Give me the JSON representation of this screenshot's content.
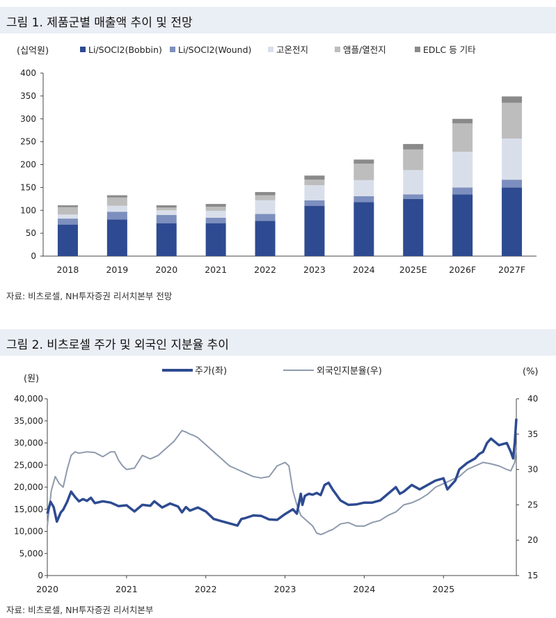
{
  "figure1": {
    "title": "그림 1. 제품군별 매출액 추이 및 전망",
    "source": "자료: 비츠로셀, NH투자증권 리서치본부 전망"
  },
  "figure2": {
    "title": "그림 2. 비츠로셀 주가 및 외국인 지분율 추이",
    "source": "자료: 비츠로셀, NH투자증권 리서치본부"
  },
  "colors": {
    "bobbin": "#2e4b91",
    "wound": "#7d8fbe",
    "high_temp": "#d9dfea",
    "amp": "#bdbdbd",
    "edlc": "#8a8a8a",
    "price": "#2e4b91",
    "foreign": "#8e9aad"
  },
  "chart_data": [
    {
      "type": "bar",
      "stacked": true,
      "unit_label": "(십억원)",
      "categories": [
        "2018",
        "2019",
        "2020",
        "2021",
        "2022",
        "2023",
        "2024",
        "2025E",
        "2026F",
        "2027F"
      ],
      "series": [
        {
          "name": "Li/SOCl2(Bobbin)",
          "color_key": "bobbin",
          "values": [
            69,
            80,
            72,
            72,
            77,
            110,
            118,
            125,
            135,
            150
          ]
        },
        {
          "name": "Li/SOCl2(Wound)",
          "color_key": "wound",
          "values": [
            13,
            17,
            18,
            12,
            15,
            12,
            13,
            10,
            15,
            17
          ]
        },
        {
          "name": "고온전지",
          "color_key": "high_temp",
          "values": [
            9,
            13,
            10,
            15,
            30,
            33,
            35,
            53,
            78,
            90
          ]
        },
        {
          "name": "앰플/열전지",
          "color_key": "amp",
          "values": [
            16,
            18,
            6,
            9,
            11,
            12,
            36,
            45,
            62,
            78
          ]
        },
        {
          "name": "EDLC 등 기타",
          "color_key": "edlc",
          "values": [
            4,
            5,
            5,
            6,
            7,
            9,
            9,
            12,
            10,
            14
          ]
        }
      ],
      "ylim": [
        0,
        400
      ],
      "yticks": [
        0,
        50,
        100,
        150,
        200,
        250,
        300,
        350,
        400
      ],
      "yticklabels": [
        "0",
        "50",
        "100",
        "150",
        "200",
        "250",
        "300",
        "350",
        "400"
      ],
      "grid": false,
      "legend": "top"
    },
    {
      "type": "line",
      "y_unit_left": "(원)",
      "y_unit_right": "(%)",
      "xlim": [
        2020.0,
        2025.92
      ],
      "xticks": [
        2020,
        2021,
        2022,
        2023,
        2024,
        2025
      ],
      "xticklabels": [
        "2020",
        "2021",
        "2022",
        "2023",
        "2024",
        "2025"
      ],
      "ylim_left": [
        0,
        40000
      ],
      "yticks_left": [
        0,
        5000,
        10000,
        15000,
        20000,
        25000,
        30000,
        35000,
        40000
      ],
      "yticklabels_left": [
        "0",
        "5,000",
        "10,000",
        "15,000",
        "20,000",
        "25,000",
        "30,000",
        "35,000",
        "40,000"
      ],
      "ylim_right": [
        15,
        40
      ],
      "yticks_right": [
        15,
        20,
        25,
        30,
        35,
        40
      ],
      "yticklabels_right": [
        "15",
        "20",
        "25",
        "30",
        "35",
        "40"
      ],
      "legend": "top",
      "series": [
        {
          "name": "주가(좌)",
          "axis": "left",
          "color_key": "price",
          "x": [
            2020.0,
            2020.04,
            2020.08,
            2020.12,
            2020.17,
            2020.2,
            2020.25,
            2020.3,
            2020.35,
            2020.4,
            2020.45,
            2020.5,
            2020.55,
            2020.6,
            2020.7,
            2020.8,
            2020.9,
            2021.0,
            2021.1,
            2021.2,
            2021.3,
            2021.35,
            2021.45,
            2021.55,
            2021.65,
            2021.7,
            2021.75,
            2021.8,
            2021.9,
            2022.0,
            2022.1,
            2022.2,
            2022.3,
            2022.4,
            2022.45,
            2022.5,
            2022.6,
            2022.7,
            2022.8,
            2022.9,
            2023.0,
            2023.1,
            2023.15,
            2023.2,
            2023.22,
            2023.25,
            2023.3,
            2023.35,
            2023.4,
            2023.45,
            2023.5,
            2023.55,
            2023.6,
            2023.7,
            2023.8,
            2023.9,
            2024.0,
            2024.1,
            2024.2,
            2024.3,
            2024.4,
            2024.45,
            2024.5,
            2024.6,
            2024.7,
            2024.8,
            2024.9,
            2025.0,
            2025.05,
            2025.1,
            2025.15,
            2025.2,
            2025.3,
            2025.4,
            2025.45,
            2025.5,
            2025.55,
            2025.6,
            2025.7,
            2025.8,
            2025.85,
            2025.88,
            2025.9,
            2025.92
          ],
          "values": [
            14000,
            16700,
            15500,
            12200,
            14300,
            14900,
            16700,
            19000,
            17800,
            16800,
            17300,
            16900,
            17600,
            16400,
            16800,
            16500,
            15700,
            15900,
            14500,
            16000,
            15800,
            16800,
            15400,
            16300,
            15600,
            14300,
            15500,
            14700,
            15400,
            14500,
            12800,
            12300,
            11800,
            11300,
            12800,
            13000,
            13600,
            13500,
            12700,
            12600,
            13900,
            15000,
            14000,
            18500,
            16000,
            18000,
            18500,
            18300,
            18700,
            18200,
            20500,
            21000,
            19500,
            17000,
            16000,
            16100,
            16500,
            16500,
            17000,
            18500,
            20000,
            18500,
            19000,
            20500,
            19500,
            20500,
            21500,
            22000,
            19500,
            20500,
            21500,
            24000,
            25500,
            26500,
            27500,
            28000,
            30000,
            31000,
            29500,
            30000,
            28000,
            26500,
            30000,
            35500
          ]
        },
        {
          "name": "외국인지분율(우)",
          "axis": "right",
          "color_key": "foreign",
          "x": [
            2020.0,
            2020.05,
            2020.1,
            2020.15,
            2020.2,
            2020.25,
            2020.3,
            2020.35,
            2020.4,
            2020.5,
            2020.6,
            2020.7,
            2020.8,
            2020.85,
            2020.9,
            2020.95,
            2021.0,
            2021.1,
            2021.2,
            2021.3,
            2021.4,
            2021.5,
            2021.6,
            2021.7,
            2021.75,
            2021.8,
            2021.85,
            2021.9,
            2022.0,
            2022.1,
            2022.2,
            2022.3,
            2022.4,
            2022.5,
            2022.6,
            2022.7,
            2022.8,
            2022.9,
            2023.0,
            2023.05,
            2023.1,
            2023.15,
            2023.2,
            2023.25,
            2023.3,
            2023.35,
            2023.4,
            2023.45,
            2023.5,
            2023.55,
            2023.6,
            2023.7,
            2023.8,
            2023.9,
            2024.0,
            2024.1,
            2024.2,
            2024.3,
            2024.4,
            2024.5,
            2024.6,
            2024.7,
            2024.8,
            2024.9,
            2025.0,
            2025.1,
            2025.2,
            2025.3,
            2025.4,
            2025.5,
            2025.6,
            2025.7,
            2025.8,
            2025.85,
            2025.9,
            2025.92
          ],
          "values": [
            22,
            27,
            29,
            28,
            27.5,
            30,
            32,
            32.5,
            32.3,
            32.5,
            32.4,
            31.8,
            32.5,
            32.5,
            31.3,
            30.5,
            30,
            30.2,
            32,
            31.5,
            32,
            33,
            34,
            35.5,
            35.3,
            35,
            34.8,
            34.5,
            33.5,
            32.5,
            31.5,
            30.5,
            30,
            29.5,
            29,
            28.8,
            29,
            30.5,
            31,
            30.5,
            27,
            25,
            23.5,
            23,
            22.5,
            22,
            21,
            20.8,
            21,
            21.3,
            21.5,
            22.3,
            22.5,
            22,
            22,
            22.5,
            22.8,
            23.5,
            24,
            25,
            25.3,
            25.8,
            26.5,
            27.5,
            28,
            28.5,
            29,
            30,
            30.5,
            31,
            30.8,
            30.5,
            30,
            29.8,
            31,
            33
          ]
        }
      ]
    }
  ]
}
